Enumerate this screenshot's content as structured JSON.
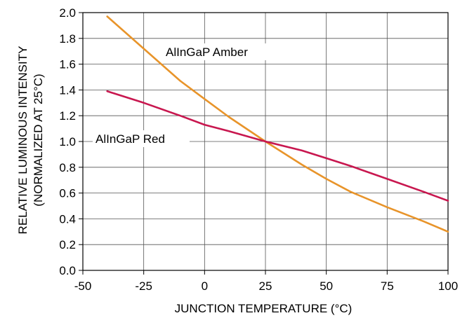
{
  "chart_data": {
    "type": "line",
    "xlabel": "JUNCTION TEMPERATURE (°C)",
    "ylabel_line1": "RELATIVE LUMINOUS INTENSITY",
    "ylabel_line2": "(NORMALIZED AT 25°C)",
    "xlim": [
      -50,
      100
    ],
    "ylim": [
      0.0,
      2.0
    ],
    "x_ticks": [
      "-50",
      "-25",
      "0",
      "25",
      "50",
      "75",
      "100"
    ],
    "y_ticks": [
      "0.0",
      "0.2",
      "0.4",
      "0.6",
      "0.8",
      "1.0",
      "1.2",
      "1.4",
      "1.6",
      "1.8",
      "2.0"
    ],
    "grid": true,
    "series": [
      {
        "name": "AlInGaP Amber",
        "color": "#e8942a",
        "x": [
          -40,
          -25,
          -10,
          0,
          10,
          25,
          40,
          50,
          60,
          75,
          90,
          100
        ],
        "y": [
          1.97,
          1.72,
          1.47,
          1.33,
          1.19,
          1.0,
          0.82,
          0.71,
          0.61,
          0.49,
          0.38,
          0.3
        ]
      },
      {
        "name": "AlInGaP Red",
        "color": "#c8174f",
        "x": [
          -40,
          -25,
          -10,
          0,
          10,
          25,
          40,
          50,
          60,
          75,
          90,
          100
        ],
        "y": [
          1.39,
          1.3,
          1.2,
          1.13,
          1.08,
          1.0,
          0.93,
          0.87,
          0.81,
          0.71,
          0.61,
          0.54
        ]
      }
    ]
  }
}
